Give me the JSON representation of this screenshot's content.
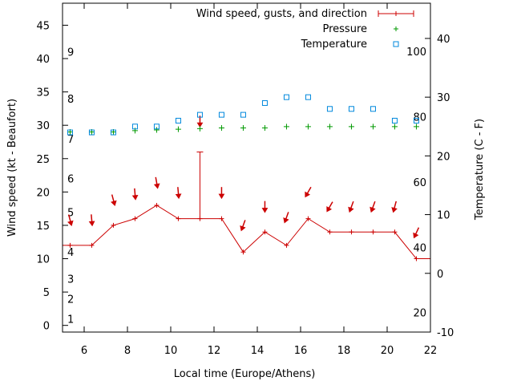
{
  "chart_data": {
    "type": "line",
    "xlabel": "Local time (Europe/Athens)",
    "ylabel_left": "Wind speed (kt - Beaufort)",
    "ylabel_right": "Temperature (C - F)",
    "xlim": [
      5,
      22
    ],
    "xticks": [
      6,
      8,
      10,
      12,
      14,
      16,
      18,
      20,
      22
    ],
    "ylim_left": [
      -1,
      48.3
    ],
    "yticks_left": [
      0,
      5,
      10,
      15,
      20,
      25,
      30,
      35,
      40,
      45
    ],
    "ylim_right": [
      -10,
      46
    ],
    "yticks_right": [
      -10,
      0,
      10,
      20,
      30,
      40
    ],
    "beaufort_labels": [
      {
        "label": "1",
        "kt": 1
      },
      {
        "label": "2",
        "kt": 4
      },
      {
        "label": "3",
        "kt": 7
      },
      {
        "label": "4",
        "kt": 11
      },
      {
        "label": "5",
        "kt": 17
      },
      {
        "label": "6",
        "kt": 22
      },
      {
        "label": "7",
        "kt": 28
      },
      {
        "label": "8",
        "kt": 34
      },
      {
        "label": "9",
        "kt": 41
      }
    ],
    "fahrenheit_labels": [
      {
        "label": "20",
        "celsius": -6.67
      },
      {
        "label": "40",
        "celsius": 4.44
      },
      {
        "label": "60",
        "celsius": 15.56
      },
      {
        "label": "80",
        "celsius": 26.67
      },
      {
        "label": "100",
        "celsius": 37.78
      }
    ],
    "legend_position": "top-right",
    "series": [
      {
        "name": "Wind speed, gusts, and direction",
        "color": "#cc0000",
        "x": [
          5.0,
          5.35,
          6.35,
          7.35,
          8.35,
          9.35,
          10.35,
          11.35,
          12.35,
          13.35,
          14.35,
          15.35,
          16.35,
          17.35,
          18.35,
          19.35,
          20.35,
          21.35,
          22.0
        ],
        "y": [
          12,
          12,
          12,
          15,
          16,
          18,
          16,
          16,
          16,
          11,
          14,
          12,
          16,
          14,
          14,
          14,
          14,
          10,
          10
        ],
        "gusts": [
          {
            "x": 11.35,
            "y": 26
          }
        ]
      },
      {
        "name": "Pressure",
        "color": "#009900",
        "x": [
          5.35,
          6.35,
          7.35,
          8.35,
          9.35,
          10.35,
          11.35,
          12.35,
          13.35,
          14.35,
          15.35,
          16.35,
          17.35,
          18.35,
          19.35,
          20.35,
          21.35
        ],
        "y": [
          29.0,
          29.0,
          29.0,
          29.2,
          29.3,
          29.4,
          29.5,
          29.6,
          29.6,
          29.6,
          29.8,
          29.8,
          29.8,
          29.8,
          29.8,
          29.8,
          29.8
        ]
      },
      {
        "name": "Temperature",
        "color": "#0088dd",
        "x": [
          5.35,
          6.35,
          7.35,
          8.35,
          9.35,
          10.35,
          11.35,
          12.35,
          13.35,
          14.35,
          15.35,
          16.35,
          17.35,
          18.35,
          19.35,
          20.35,
          21.35
        ],
        "y": [
          24,
          24,
          24,
          25,
          25,
          26,
          27,
          27,
          27,
          29,
          30,
          30,
          28,
          28,
          28,
          26,
          26
        ]
      }
    ],
    "wind_direction_arrows": [
      {
        "x": 5.35,
        "kt": 15.8,
        "angle": -15
      },
      {
        "x": 6.35,
        "kt": 15.8,
        "angle": -5
      },
      {
        "x": 7.35,
        "kt": 18.8,
        "angle": -15
      },
      {
        "x": 8.35,
        "kt": 19.7,
        "angle": -5
      },
      {
        "x": 9.35,
        "kt": 21.4,
        "angle": -10
      },
      {
        "x": 10.35,
        "kt": 19.9,
        "angle": -5
      },
      {
        "x": 11.35,
        "kt": 30.6,
        "angle": 0
      },
      {
        "x": 12.35,
        "kt": 19.9,
        "angle": 0
      },
      {
        "x": 13.35,
        "kt": 15.0,
        "angle": 20
      },
      {
        "x": 14.35,
        "kt": 17.8,
        "angle": 0
      },
      {
        "x": 15.35,
        "kt": 16.2,
        "angle": 20
      },
      {
        "x": 16.35,
        "kt": 20.0,
        "angle": 30
      },
      {
        "x": 17.35,
        "kt": 17.8,
        "angle": 30
      },
      {
        "x": 18.35,
        "kt": 17.8,
        "angle": 20
      },
      {
        "x": 19.35,
        "kt": 17.8,
        "angle": 20
      },
      {
        "x": 20.35,
        "kt": 17.8,
        "angle": 15
      },
      {
        "x": 21.35,
        "kt": 13.9,
        "angle": 25
      }
    ]
  }
}
